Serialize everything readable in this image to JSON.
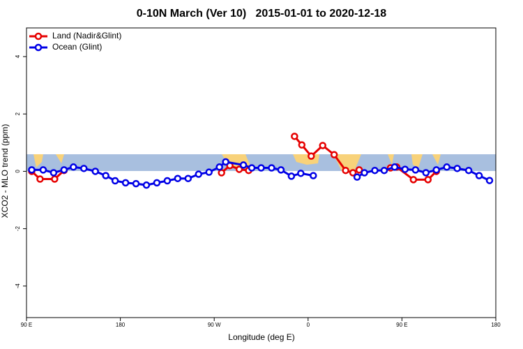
{
  "chart_data": {
    "type": "line",
    "title": "0-10N March (Ver 10)   2015-01-01 to 2020-12-18",
    "x_label": "Longitude (deg E)",
    "y_label": "XCO2 - MLO trend (ppm)",
    "xlim": [
      90,
      540
    ],
    "xticks": [
      {
        "value": 90,
        "label": "90 E"
      },
      180,
      {
        "value": 270,
        "label": "90 W"
      },
      {
        "value": 360,
        "label": "0"
      },
      {
        "value": 450,
        "label": "90 E"
      },
      {
        "value": 540,
        "label": "180"
      }
    ],
    "ylim": [
      -5.1,
      5
    ],
    "yticks": [
      -4,
      -2,
      0,
      2,
      4
    ],
    "legend": "top-left",
    "series": [
      {
        "name": "Land (Nadir&Glint)",
        "color": "#e60000",
        "x": [
          95,
          103,
          117,
          126,
          200,
          277,
          285,
          294,
          303,
          320,
          347,
          354,
          363,
          374,
          385,
          396,
          403,
          409,
          425,
          439,
          445,
          461,
          475,
          483
        ],
        "values": [
          0.0,
          -0.27,
          -0.27,
          0.03,
          null,
          -0.05,
          0.2,
          0.07,
          0.03,
          null,
          1.22,
          0.92,
          0.53,
          0.9,
          0.58,
          0.03,
          -0.05,
          0.05,
          null,
          0.12,
          0.15,
          -0.29,
          -0.29,
          0.0
        ]
      },
      {
        "name": "Ocean (Glint)",
        "color": "#0000e6",
        "x": [
          95,
          106,
          116,
          126,
          135,
          145,
          156,
          166,
          175,
          185,
          195,
          205,
          215,
          225,
          235,
          245,
          255,
          265,
          275,
          281,
          298,
          306,
          315,
          325,
          334,
          344,
          353,
          365,
          385,
          407,
          414,
          424,
          433,
          443,
          453,
          463,
          473,
          483,
          493,
          503,
          514,
          524,
          534
        ],
        "values": [
          0.05,
          0.05,
          -0.05,
          0.05,
          0.15,
          0.1,
          0.0,
          -0.15,
          -0.33,
          -0.4,
          -0.43,
          -0.48,
          -0.4,
          -0.33,
          -0.25,
          -0.25,
          -0.1,
          -0.03,
          0.15,
          0.33,
          0.22,
          0.12,
          0.12,
          0.12,
          0.05,
          -0.17,
          -0.07,
          -0.15,
          null,
          -0.2,
          -0.05,
          0.03,
          0.03,
          0.15,
          0.07,
          0.05,
          -0.05,
          0.05,
          0.15,
          0.1,
          0.03,
          -0.15,
          -0.32
        ]
      }
    ]
  }
}
